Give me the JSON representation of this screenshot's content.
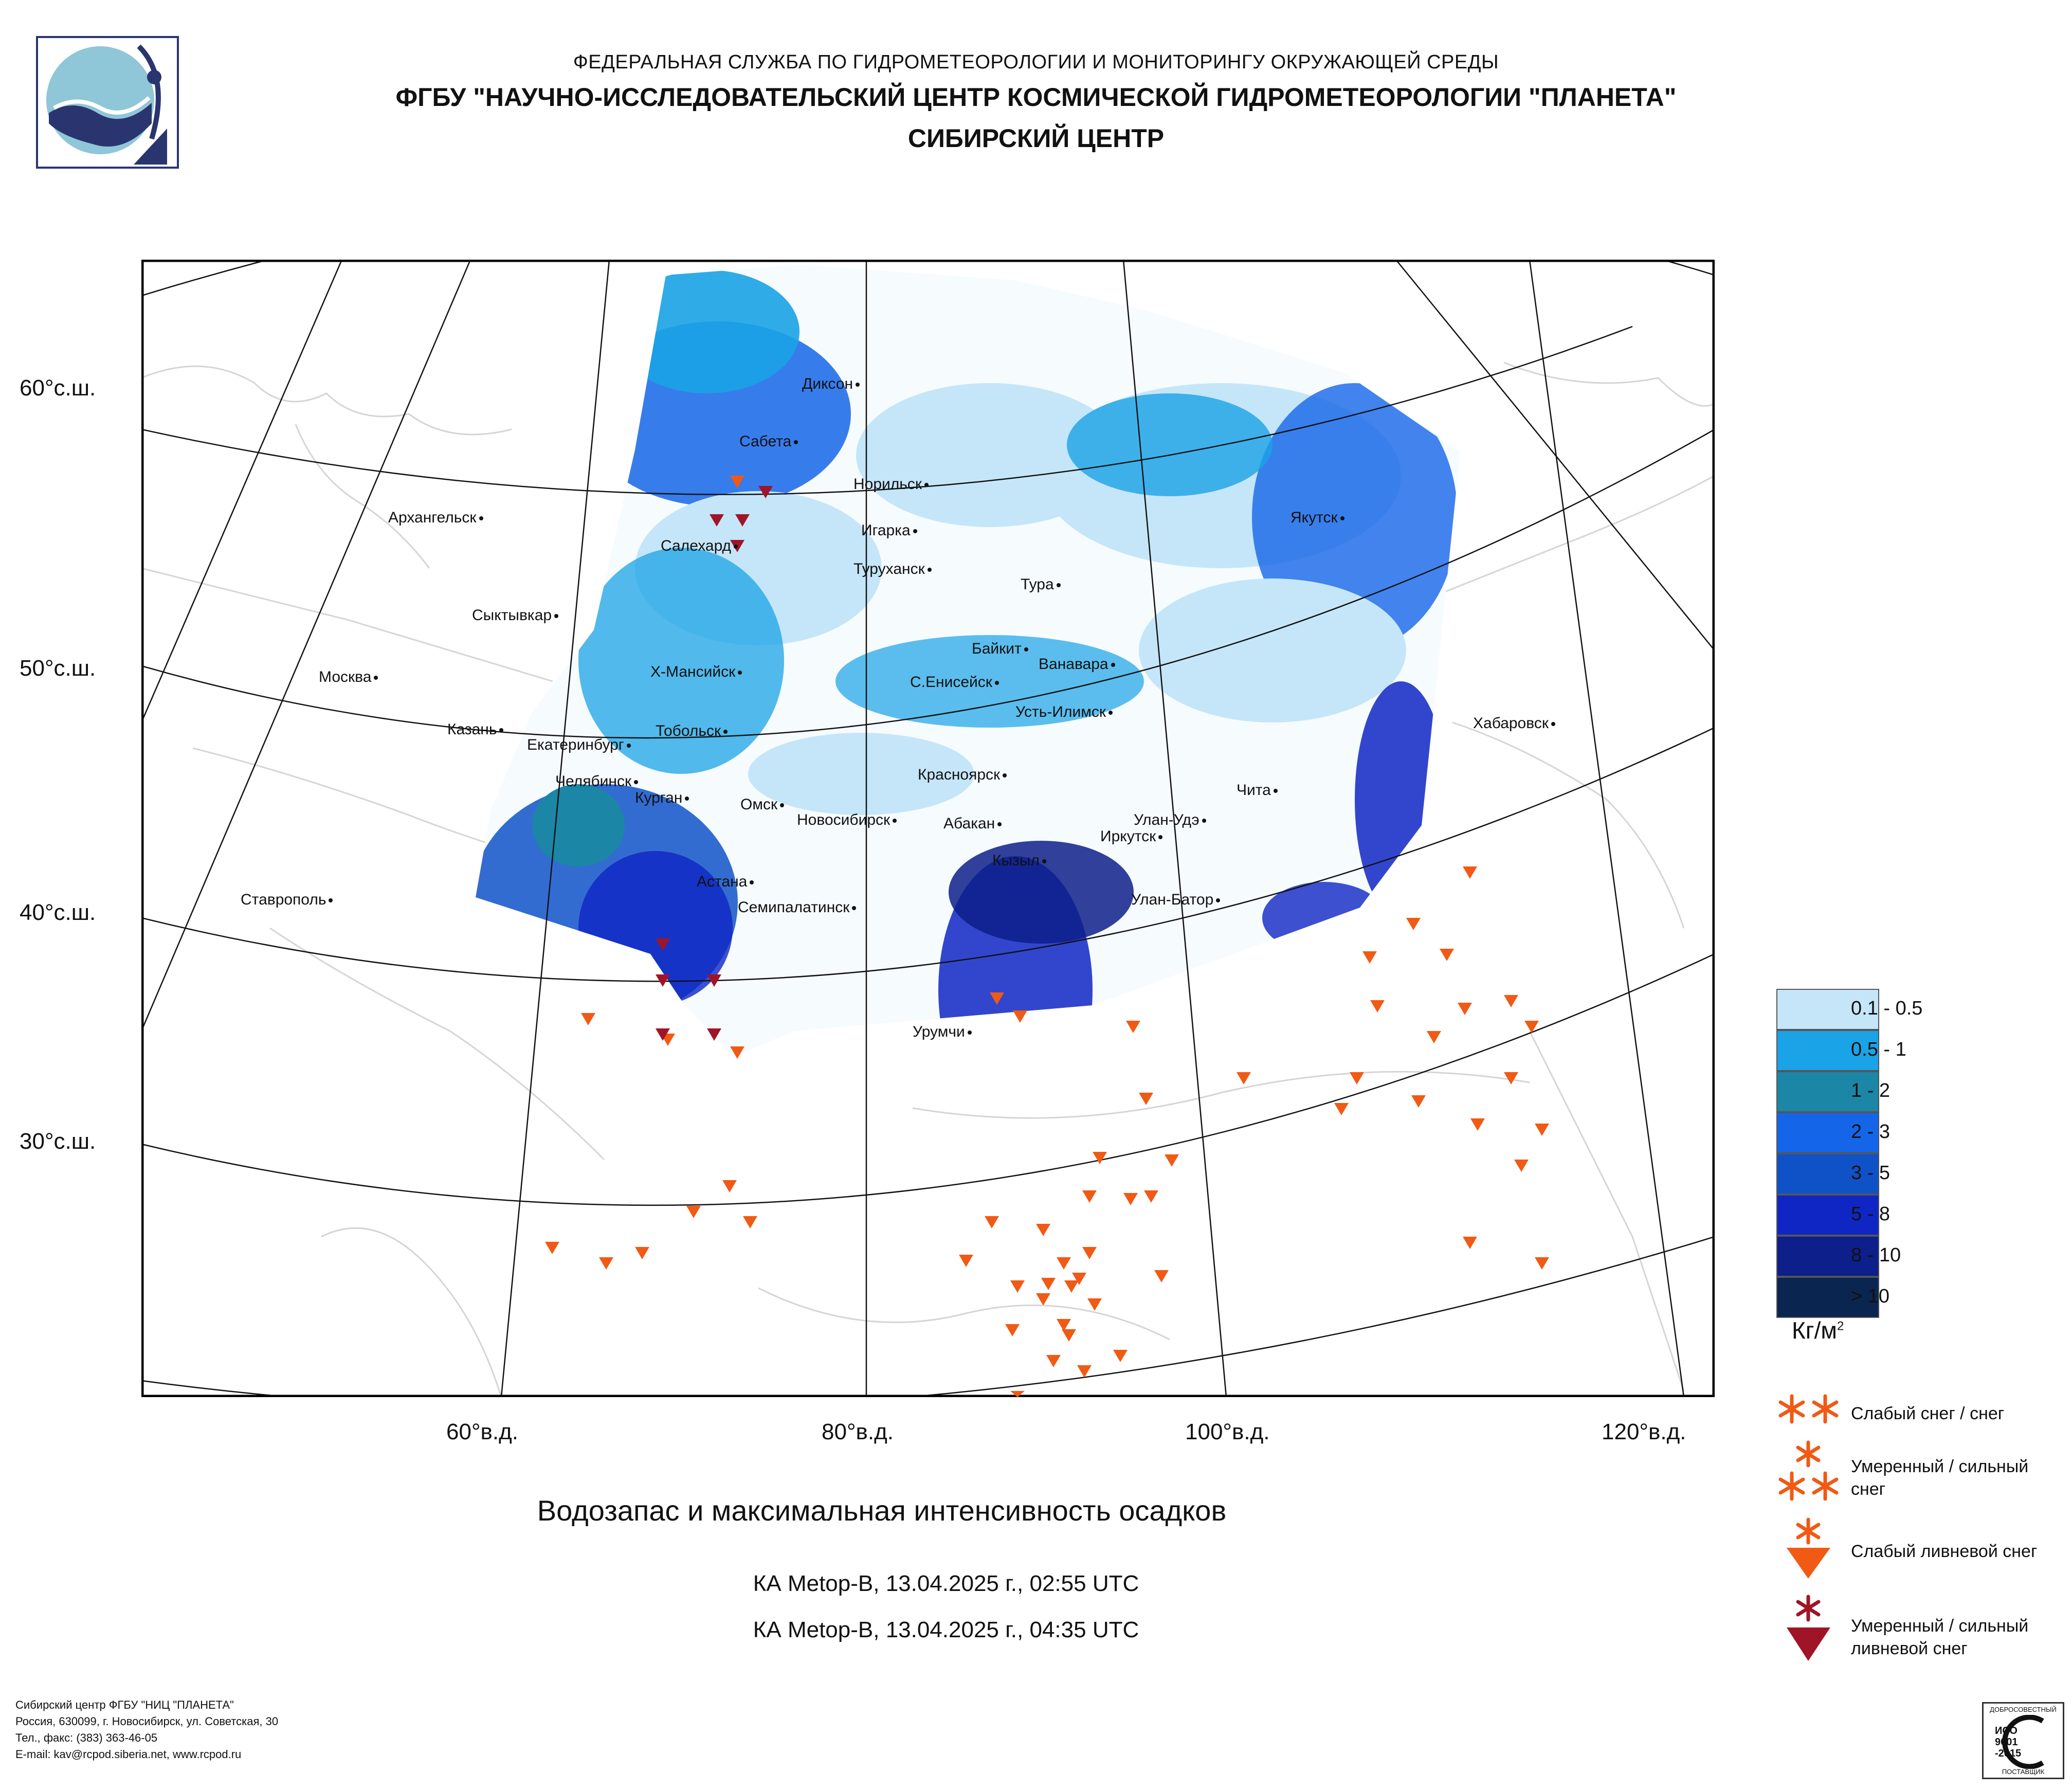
{
  "header": {
    "line1": "ФЕДЕРАЛЬНАЯ СЛУЖБА ПО ГИДРОМЕТЕОРОЛОГИИ И МОНИТОРИНГУ ОКРУЖАЮЩЕЙ СРЕДЫ",
    "line2": "ФГБУ \"НАУЧНО-ИССЛЕДОВАТЕЛЬСКИЙ ЦЕНТР КОСМИЧЕСКОЙ ГИДРОМЕТЕОРОЛОГИИ \"ПЛАНЕТА\"",
    "line3": "СИБИРСКИЙ ЦЕНТР"
  },
  "latitude_labels": [
    "60°с.ш.",
    "50°с.ш.",
    "40°с.ш.",
    "30°с.ш."
  ],
  "longitude_labels": [
    "60°в.д.",
    "80°в.д.",
    "100°в.д.",
    "120°в.д."
  ],
  "cities": [
    "Диксон",
    "Сабета",
    "Норильск",
    "Архангельск",
    "Игарка",
    "Салехард",
    "Туруханск",
    "Якутск",
    "Тура",
    "Сыктывкар",
    "Байкит",
    "Ванавара",
    "Москва",
    "Х-Мансийск",
    "С.Енисейск",
    "Усть-Илимск",
    "Хабаровск",
    "Казань",
    "Тобольск",
    "Екатеринбург",
    "Челябинск",
    "Курган",
    "Красноярск",
    "Чита",
    "Омск",
    "Новосибирск",
    "Абакан",
    "Улан-Удэ",
    "Иркутск",
    "Кызыл",
    "Астана",
    "Ставрополь",
    "Улан-Батор",
    "Семипалатинск",
    "Урумчи"
  ],
  "legend": {
    "classes": [
      {
        "label": "0.1 - 0.5",
        "color": "#c5e6f9"
      },
      {
        "label": "0.5 - 1",
        "color": "#1aa3e6"
      },
      {
        "label": "1 - 2",
        "color": "#1b86a6"
      },
      {
        "label": "2 - 3",
        "color": "#1565e8"
      },
      {
        "label": "3 - 5",
        "color": "#0f52c8"
      },
      {
        "label": "5 - 8",
        "color": "#0f26c4"
      },
      {
        "label": "8 - 10",
        "color": "#0d1f8a"
      },
      {
        "label": "> 10",
        "color": "#0a2550"
      }
    ],
    "unit": "Кг/м",
    "unit_sup": "2"
  },
  "symbols": {
    "weak_snow": "Слабый снег / снег",
    "moderate_snow_l1": "Умеренный / сильный",
    "moderate_snow_l2": "снег",
    "weak_shower": "Слабый ливневой снег",
    "moderate_shower_l1": "Умеренный / сильный",
    "moderate_shower_l2": "ливневой снег",
    "orange": "#f05a14",
    "dark_red": "#a01428"
  },
  "title": "Водозапас и максимальная интенсивность осадков",
  "passes": [
    "КА Metop-B, 13.04.2025 г., 02:55 UTC",
    "КА Metop-B, 13.04.2025 г., 04:35 UTC"
  ],
  "footer": [
    "Сибирский центр ФГБУ \"НИЦ \"ПЛАНЕТА\"",
    "Россия, 630099, г. Новосибирск, ул. Советская, 30",
    "Тел., факс: (383) 363-46-05",
    "E-mail: kav@rcpod.siberia.net, www.rcpod.ru"
  ],
  "iso_badge": {
    "top": "ДОБРОСОВЕСТНЫЙ",
    "l1": "ИСО",
    "l2": "9001",
    "l3": "-2015",
    "bottom": "ПОСТАВЩИК"
  }
}
